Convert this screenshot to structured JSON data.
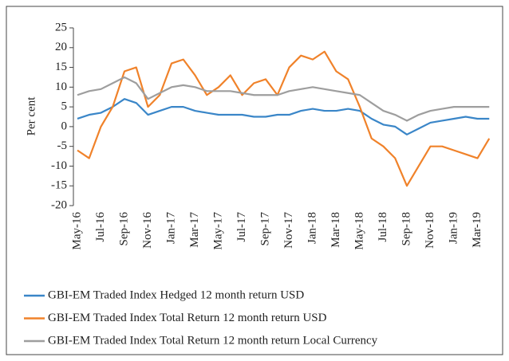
{
  "chart_data": {
    "type": "line",
    "ylabel": "Per cent",
    "categories": [
      "May-16",
      null,
      "Jul-16",
      null,
      "Sep-16",
      null,
      "Nov-16",
      null,
      "Jan-17",
      null,
      "Mar-17",
      null,
      "May-17",
      null,
      "Jul-17",
      null,
      "Sep-17",
      null,
      "Nov-17",
      null,
      "Jan-18",
      null,
      "Mar-18",
      null,
      "May-18",
      null,
      "Jul-18",
      null,
      "Sep-18",
      null,
      "Nov-18",
      null,
      "Jan-19",
      null,
      "Mar-19",
      null
    ],
    "series": [
      {
        "name": "GBI-EM Traded Index Hedged 12 month return USD",
        "color": "#3a86c8",
        "values": [
          2,
          3,
          3.5,
          5,
          7,
          6,
          3,
          4,
          5,
          5,
          4,
          3.5,
          3,
          3,
          3,
          2.5,
          2.5,
          3,
          3,
          4,
          4.5,
          4,
          4,
          4.5,
          4,
          2,
          0.5,
          0,
          -2,
          -0.5,
          1,
          1.5,
          2,
          2.5,
          2,
          2
        ]
      },
      {
        "name": "GBI-EM Traded Index Total Return 12 month return USD",
        "color": "#f0822a",
        "values": [
          -6,
          -8,
          0,
          5,
          14,
          15,
          5,
          8,
          16,
          17,
          13,
          8,
          10,
          13,
          8,
          11,
          12,
          8,
          15,
          18,
          17,
          19,
          14,
          12,
          5,
          -3,
          -5,
          -8,
          -15,
          -10,
          -5,
          -5,
          -6,
          -7,
          -8,
          -3
        ]
      },
      {
        "name": "GBI-EM Traded Index Total Return 12 month return Local Currency",
        "color": "#9e9e9e",
        "values": [
          8,
          9,
          9.5,
          11,
          12.5,
          11,
          7,
          8.5,
          10,
          10.5,
          10,
          9,
          9,
          9,
          8.5,
          8,
          8,
          8,
          9,
          9.5,
          10,
          9.5,
          9,
          8.5,
          8,
          6,
          4,
          3,
          1.5,
          3,
          4,
          4.5,
          5,
          5,
          5,
          5
        ]
      }
    ],
    "ylim": [
      -20,
      25
    ],
    "yticks": [
      -20,
      -15,
      -10,
      -5,
      0,
      5,
      10,
      15,
      20,
      25
    ]
  }
}
